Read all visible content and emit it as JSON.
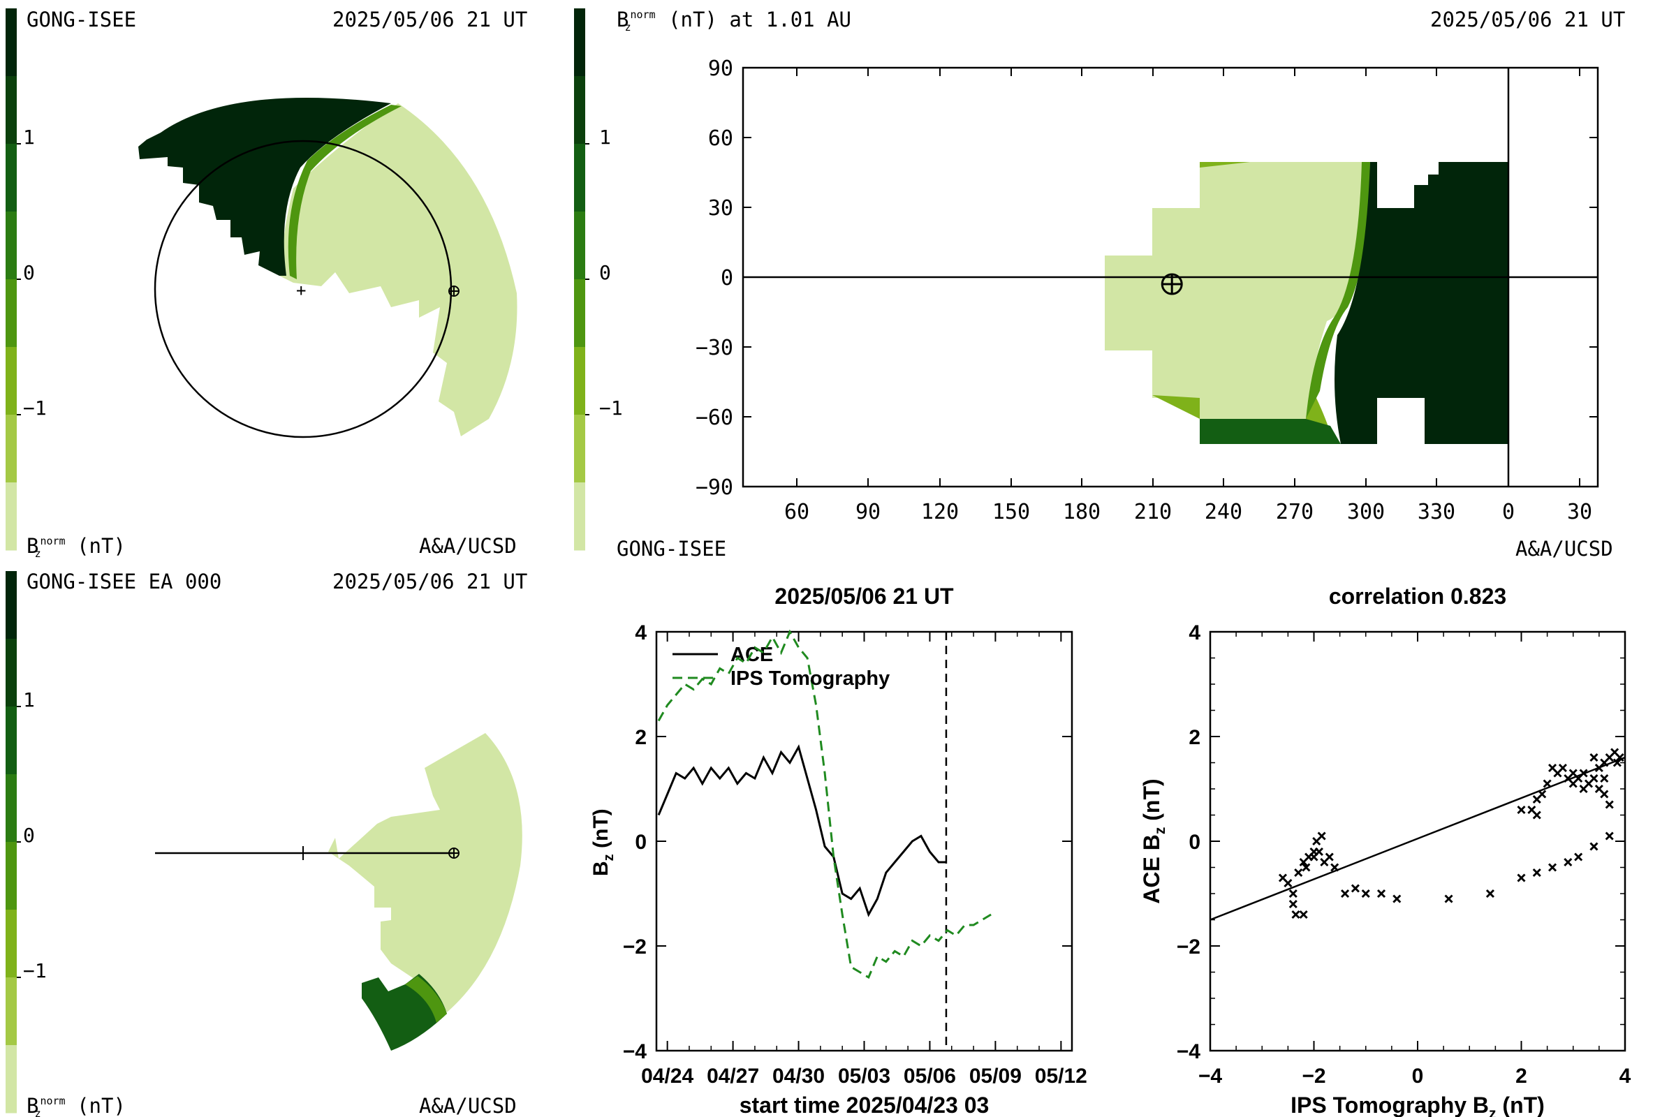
{
  "colorbar": {
    "colors": [
      "#01250a",
      "#0b400c",
      "#135e13",
      "#2b7c12",
      "#4e9610",
      "#7fb21a",
      "#a4c945",
      "#d2e6a5"
    ],
    "ticks": [
      "1",
      "0",
      "−1"
    ]
  },
  "panel_tl": {
    "left_label": "GONG-ISEE",
    "date": "2025/05/06 21 UT",
    "unit_main": "B",
    "unit_sub": "z",
    "unit_sup": "norm",
    "unit_tail": "(nT)",
    "credit": "A&A/UCSD"
  },
  "panel_bl": {
    "left_label": "GONG-ISEE EA 000",
    "date": "2025/05/06 21 UT",
    "unit_main": "B",
    "unit_sub": "z",
    "unit_sup": "norm",
    "unit_tail": "(nT)",
    "credit": "A&A/UCSD"
  },
  "panel_tr": {
    "title_main": "B",
    "title_sub": "z",
    "title_sup": "norm",
    "title_tail": "(nT) at 1.01 AU",
    "date": "2025/05/06 21 UT",
    "left_label": "GONG-ISEE",
    "credit": "A&A/UCSD"
  },
  "chart_data": [
    {
      "type": "heatmap",
      "name": "synoptic-map",
      "x_ticks": [
        "60",
        "90",
        "120",
        "150",
        "180",
        "210",
        "240",
        "270",
        "300",
        "330",
        "0",
        "30"
      ],
      "y_ticks": [
        "90",
        "60",
        "30",
        "0",
        "−30",
        "−60",
        "−90"
      ],
      "ylim": [
        -90,
        90
      ],
      "earth_marker": {
        "longitude": 218,
        "latitude": -3
      }
    },
    {
      "type": "line",
      "title": "2025/05/06 21 UT",
      "xlabel": "start time 2025/04/23 03",
      "ylabel_main": "B",
      "ylabel_sub": "z",
      "ylabel_tail": "(nT)",
      "x_ticks": [
        "04/24",
        "04/27",
        "04/30",
        "05/03",
        "05/06",
        "05/09",
        "05/12"
      ],
      "y_ticks": [
        "4",
        "2",
        "0",
        "−2",
        "−4"
      ],
      "xlim_days": [
        0.5,
        19.5
      ],
      "ylim": [
        -4,
        4
      ],
      "now_day": 13.75,
      "series": [
        {
          "name": "ACE",
          "color": "#000000",
          "dash": "solid",
          "points": [
            [
              0.6,
              0.5
            ],
            [
              1.0,
              0.9
            ],
            [
              1.4,
              1.3
            ],
            [
              1.8,
              1.2
            ],
            [
              2.2,
              1.4
            ],
            [
              2.6,
              1.1
            ],
            [
              3.0,
              1.4
            ],
            [
              3.4,
              1.2
            ],
            [
              3.8,
              1.4
            ],
            [
              4.2,
              1.1
            ],
            [
              4.6,
              1.3
            ],
            [
              5.0,
              1.2
            ],
            [
              5.4,
              1.6
            ],
            [
              5.8,
              1.3
            ],
            [
              6.2,
              1.7
            ],
            [
              6.6,
              1.5
            ],
            [
              7.0,
              1.8
            ],
            [
              7.4,
              1.2
            ],
            [
              7.8,
              0.6
            ],
            [
              8.2,
              -0.1
            ],
            [
              8.6,
              -0.3
            ],
            [
              9.0,
              -1.0
            ],
            [
              9.4,
              -1.1
            ],
            [
              9.8,
              -0.9
            ],
            [
              10.2,
              -1.4
            ],
            [
              10.6,
              -1.1
            ],
            [
              11.0,
              -0.6
            ],
            [
              11.4,
              -0.4
            ],
            [
              11.8,
              -0.2
            ],
            [
              12.2,
              0.0
            ],
            [
              12.6,
              0.1
            ],
            [
              13.0,
              -0.2
            ],
            [
              13.4,
              -0.4
            ],
            [
              13.75,
              -0.4
            ]
          ]
        },
        {
          "name": "IPS Tomography",
          "color": "#1f8a1f",
          "dash": "dashed",
          "points": [
            [
              0.6,
              2.3
            ],
            [
              1.0,
              2.6
            ],
            [
              1.4,
              2.8
            ],
            [
              1.8,
              3.0
            ],
            [
              2.2,
              2.9
            ],
            [
              2.6,
              3.1
            ],
            [
              3.0,
              3.0
            ],
            [
              3.4,
              3.3
            ],
            [
              3.8,
              3.2
            ],
            [
              4.2,
              3.5
            ],
            [
              4.6,
              3.4
            ],
            [
              5.0,
              3.7
            ],
            [
              5.4,
              3.6
            ],
            [
              5.8,
              3.9
            ],
            [
              6.2,
              3.6
            ],
            [
              6.6,
              4.0
            ],
            [
              7.0,
              3.7
            ],
            [
              7.4,
              3.5
            ],
            [
              7.8,
              2.6
            ],
            [
              8.2,
              1.3
            ],
            [
              8.6,
              -0.3
            ],
            [
              9.0,
              -1.4
            ],
            [
              9.4,
              -2.4
            ],
            [
              9.8,
              -2.5
            ],
            [
              10.2,
              -2.6
            ],
            [
              10.6,
              -2.2
            ],
            [
              11.0,
              -2.3
            ],
            [
              11.4,
              -2.1
            ],
            [
              11.8,
              -2.2
            ],
            [
              12.2,
              -1.9
            ],
            [
              12.6,
              -2.0
            ],
            [
              13.0,
              -1.8
            ],
            [
              13.4,
              -1.9
            ],
            [
              13.8,
              -1.7
            ],
            [
              14.2,
              -1.8
            ],
            [
              14.6,
              -1.6
            ],
            [
              15.0,
              -1.6
            ],
            [
              15.4,
              -1.5
            ],
            [
              15.8,
              -1.4
            ]
          ]
        }
      ]
    },
    {
      "type": "scatter",
      "title": "correlation 0.823",
      "xlabel_main": "IPS Tomography B",
      "xlabel_sub": "z",
      "xlabel_tail": "(nT)",
      "ylabel_main": "ACE B",
      "ylabel_sub": "z",
      "ylabel_tail": "(nT)",
      "x_ticks": [
        "−4",
        "−2",
        "0",
        "2",
        "4"
      ],
      "y_ticks": [
        "4",
        "2",
        "0",
        "−2",
        "−4"
      ],
      "xlim": [
        -4,
        4
      ],
      "ylim": [
        -4,
        4
      ],
      "fit_line": [
        [
          -4,
          -1.5
        ],
        [
          4,
          1.6
        ]
      ],
      "points": [
        [
          -2.6,
          -0.7
        ],
        [
          -2.5,
          -0.8
        ],
        [
          -2.4,
          -1.0
        ],
        [
          -2.4,
          -1.2
        ],
        [
          -2.35,
          -1.4
        ],
        [
          -2.2,
          -1.4
        ],
        [
          -2.3,
          -0.6
        ],
        [
          -2.2,
          -0.4
        ],
        [
          -2.1,
          -0.3
        ],
        [
          -2.0,
          -0.2
        ],
        [
          -1.95,
          0.0
        ],
        [
          -1.9,
          -0.2
        ],
        [
          -2.0,
          -0.3
        ],
        [
          -1.8,
          -0.4
        ],
        [
          -1.7,
          -0.3
        ],
        [
          -1.85,
          0.1
        ],
        [
          -2.15,
          -0.5
        ],
        [
          -1.6,
          -0.5
        ],
        [
          -1.4,
          -1.0
        ],
        [
          -1.2,
          -0.9
        ],
        [
          -1.0,
          -1.0
        ],
        [
          -0.7,
          -1.0
        ],
        [
          -0.4,
          -1.1
        ],
        [
          0.6,
          -1.1
        ],
        [
          1.4,
          -1.0
        ],
        [
          2.0,
          -0.7
        ],
        [
          2.3,
          -0.6
        ],
        [
          2.6,
          -0.5
        ],
        [
          2.9,
          -0.4
        ],
        [
          3.1,
          -0.3
        ],
        [
          3.4,
          -0.1
        ],
        [
          3.7,
          0.1
        ],
        [
          2.0,
          0.6
        ],
        [
          2.2,
          0.6
        ],
        [
          2.3,
          0.5
        ],
        [
          2.3,
          0.8
        ],
        [
          2.4,
          0.9
        ],
        [
          2.5,
          1.1
        ],
        [
          2.7,
          1.3
        ],
        [
          2.8,
          1.4
        ],
        [
          2.9,
          1.2
        ],
        [
          3.0,
          1.1
        ],
        [
          3.1,
          1.2
        ],
        [
          3.2,
          1.3
        ],
        [
          3.3,
          1.1
        ],
        [
          3.4,
          1.2
        ],
        [
          3.5,
          1.4
        ],
        [
          3.6,
          1.5
        ],
        [
          3.7,
          1.6
        ],
        [
          3.8,
          1.7
        ],
        [
          3.9,
          1.6
        ],
        [
          3.85,
          1.5
        ],
        [
          3.6,
          1.2
        ],
        [
          3.5,
          1.0
        ],
        [
          3.6,
          0.9
        ],
        [
          3.7,
          0.7
        ],
        [
          3.0,
          1.3
        ],
        [
          2.6,
          1.4
        ],
        [
          3.2,
          1.0
        ],
        [
          3.4,
          1.6
        ]
      ]
    }
  ]
}
